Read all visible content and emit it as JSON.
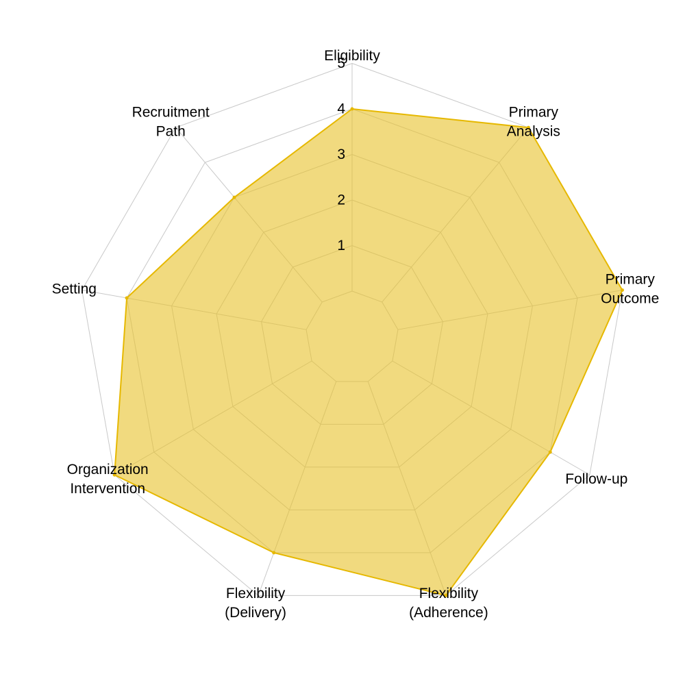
{
  "chart_data": {
    "type": "radar",
    "title": "",
    "axes": [
      {
        "lines": [
          "Eligibility"
        ]
      },
      {
        "lines": [
          "Primary",
          "Analysis"
        ]
      },
      {
        "lines": [
          "Primary",
          "Outcome"
        ]
      },
      {
        "lines": [
          "Follow-up"
        ]
      },
      {
        "lines": [
          "Flexibility",
          "(Adherence)"
        ]
      },
      {
        "lines": [
          "Flexibility",
          "(Delivery)"
        ]
      },
      {
        "lines": [
          "Organization",
          "Intervention"
        ]
      },
      {
        "lines": [
          "Setting"
        ]
      },
      {
        "lines": [
          "Recruitment",
          "Path"
        ]
      }
    ],
    "categories": [
      "Eligibility",
      "Primary Analysis",
      "Primary Outcome",
      "Follow-up",
      "Flexibility (Adherence)",
      "Flexibility (Delivery)",
      "Organization Intervention",
      "Setting",
      "Recruitment Path"
    ],
    "series": [
      {
        "values": [
          4,
          5,
          5,
          4,
          5,
          4,
          5,
          4,
          3
        ]
      }
    ],
    "rlim": [
      0,
      5
    ],
    "ticks": [
      "1",
      "2",
      "3",
      "4",
      "5"
    ],
    "grid": true,
    "legend": "none",
    "colors": {
      "fill": "#e8c22a",
      "fill_opacity": 0.6,
      "line": "#e6b800",
      "grid": "#c8c8c8",
      "tick_text": "#000000"
    }
  }
}
